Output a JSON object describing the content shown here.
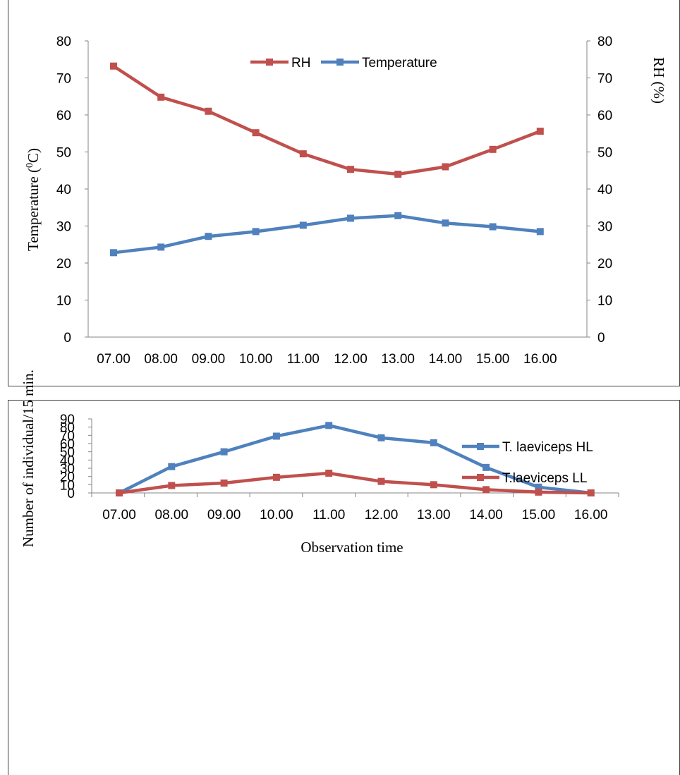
{
  "chart_data": [
    {
      "type": "line",
      "categories": [
        "07.00",
        "08.00",
        "09.00",
        "10.00",
        "11.00",
        "12.00",
        "13.00",
        "14.00",
        "15.00",
        "16.00"
      ],
      "series": [
        {
          "name": "RH",
          "color": "#C0504D",
          "axis": "right",
          "values": [
            73.2,
            64.8,
            61.0,
            55.2,
            49.5,
            45.3,
            44.0,
            46.0,
            50.7,
            55.6
          ]
        },
        {
          "name": "Temperature",
          "color": "#4F81BD",
          "axis": "left",
          "values": [
            22.8,
            24.3,
            27.2,
            28.5,
            30.2,
            32.1,
            32.8,
            30.8,
            29.8,
            28.5
          ]
        }
      ],
      "ylabel": "Temperature (0C)",
      "ylabel_superscript": "0",
      "y2label": "RH (%)",
      "ylim": [
        0,
        80
      ],
      "y2lim": [
        0,
        80
      ],
      "yticks": [
        "0",
        "10",
        "20",
        "30",
        "40",
        "50",
        "60",
        "70",
        "80"
      ],
      "y2ticks": [
        "0",
        "10",
        "20",
        "30",
        "40",
        "50",
        "60",
        "70",
        "80"
      ],
      "xlabel": "",
      "legend": "top-center",
      "grid": false
    },
    {
      "type": "line",
      "categories": [
        "07.00",
        "08.00",
        "09.00",
        "10.00",
        "11.00",
        "12.00",
        "13.00",
        "14.00",
        "15.00",
        "16.00"
      ],
      "series": [
        {
          "name": "T. laeviceps HL",
          "color": "#4F81BD",
          "values": [
            0,
            32,
            50,
            69,
            82,
            67,
            61,
            31,
            7,
            0
          ]
        },
        {
          "name": "T.laeviceps LL",
          "color": "#C0504D",
          "values": [
            0,
            9,
            12,
            19,
            24,
            14,
            10,
            4,
            1,
            0
          ]
        }
      ],
      "ylabel": "Number of individual/15 min.",
      "xlabel": "Observation time",
      "ylim": [
        0,
        90
      ],
      "yticks": [
        "0",
        "10",
        "20",
        "30",
        "40",
        "50",
        "60",
        "70",
        "80",
        "90"
      ],
      "legend": "top-right",
      "grid": false
    }
  ]
}
